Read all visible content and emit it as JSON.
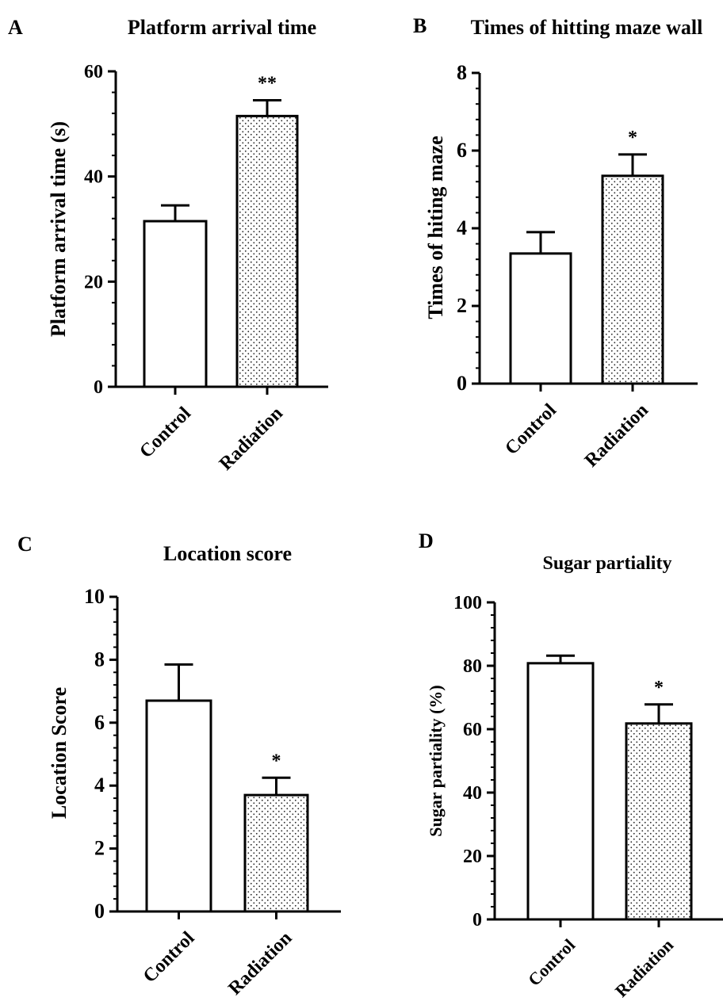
{
  "chart_data": [
    {
      "type": "bar",
      "panel_label": "A",
      "title": "Platform arrival time",
      "ylabel": "Platform arrival time (s)",
      "xlabel": "",
      "categories": [
        "Control",
        "Radiation"
      ],
      "values": [
        31.5,
        51.5
      ],
      "errors": [
        3.0,
        3.0
      ],
      "significance": [
        "",
        "**"
      ],
      "ylim": [
        0,
        60
      ],
      "yticks": [
        "0",
        "20",
        "40",
        "60"
      ],
      "ytick_values": [
        0,
        20,
        40,
        60
      ],
      "fills": [
        "white",
        "dotted"
      ]
    },
    {
      "type": "bar",
      "panel_label": "B",
      "title": "Times of hitting maze wall",
      "ylabel": "Times of hiting maze",
      "xlabel": "",
      "categories": [
        "Control",
        "Radiation"
      ],
      "values": [
        3.35,
        5.35
      ],
      "errors": [
        0.55,
        0.55
      ],
      "significance": [
        "",
        "*"
      ],
      "ylim": [
        0,
        8
      ],
      "yticks": [
        "0",
        "2",
        "4",
        "6",
        "8"
      ],
      "ytick_values": [
        0,
        2,
        4,
        6,
        8
      ],
      "fills": [
        "white",
        "dotted"
      ]
    },
    {
      "type": "bar",
      "panel_label": "C",
      "title": "Location score",
      "ylabel": "Location Score",
      "xlabel": "",
      "categories": [
        "Control",
        "Radiation"
      ],
      "values": [
        6.7,
        3.7
      ],
      "errors": [
        1.15,
        0.55
      ],
      "significance": [
        "",
        "*"
      ],
      "ylim": [
        0,
        10
      ],
      "yticks": [
        "0",
        "2",
        "4",
        "6",
        "8",
        "10"
      ],
      "ytick_values": [
        0,
        2,
        4,
        6,
        8,
        10
      ],
      "fills": [
        "white",
        "dotted"
      ]
    },
    {
      "type": "bar",
      "panel_label": "D",
      "title": "Sugar partiality",
      "ylabel": "Sugar partiality (%)",
      "xlabel": "",
      "categories": [
        "Control",
        "Radiation"
      ],
      "values": [
        80.8,
        61.8
      ],
      "errors": [
        2.4,
        6.0
      ],
      "significance": [
        "",
        "*"
      ],
      "ylim": [
        0,
        100
      ],
      "yticks": [
        "0",
        "20",
        "40",
        "60",
        "80",
        "100"
      ],
      "ytick_values": [
        0,
        20,
        40,
        60,
        80,
        100
      ],
      "fills": [
        "white",
        "dotted"
      ]
    }
  ]
}
